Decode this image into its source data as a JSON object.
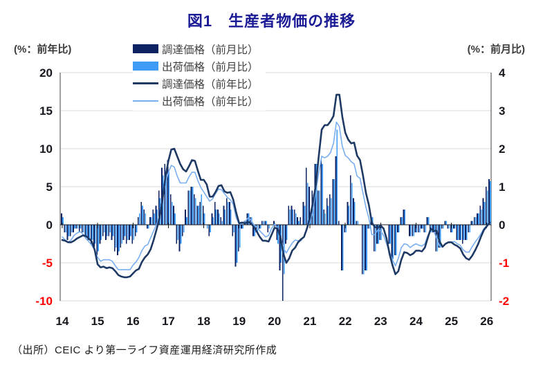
{
  "title": "図1　生産者物価の推移",
  "axis_left_unit": "(%：前年比)",
  "axis_right_unit": "(%：前月比)",
  "source": "（出所）CEIC より第一ライフ資産運用経済研究所作成",
  "legend": [
    {
      "label": "調達価格（前月比）",
      "type": "bar",
      "color": "#0c2263"
    },
    {
      "label": "出荷価格（前月比）",
      "type": "bar",
      "color": "#3e9bf7"
    },
    {
      "label": "調達価格（前年比）",
      "type": "line",
      "color": "#1d3964"
    },
    {
      "label": "出荷価格（前年比）",
      "type": "line",
      "color": "#78aef2"
    }
  ],
  "chart_data": {
    "type": "bar+line combo",
    "frequency": "monthly",
    "x_start": "2014-01",
    "x_end": "2026-02",
    "x_tick_labels": [
      "14",
      "15",
      "16",
      "17",
      "18",
      "19",
      "20",
      "21",
      "22",
      "23",
      "24",
      "25",
      "26"
    ],
    "left_axis": {
      "label": "(%：前年比)",
      "min": -10,
      "max": 20,
      "ticks": [
        20,
        15,
        10,
        5,
        0,
        -5,
        -10
      ]
    },
    "right_axis": {
      "label": "(%：前月比)",
      "min": -2,
      "max": 4,
      "ticks": [
        4,
        3,
        2,
        1,
        0,
        -1,
        -2
      ]
    },
    "grid": true,
    "legend_position": "top-left-overlapping",
    "tick_color": "#17171f",
    "negative_tick_color": "#fe0000",
    "gridline_color": "#d9d9d9",
    "frame_color": "#404040",
    "zero_line_color": "#1a1a1a",
    "series": [
      {
        "name": "調達価格（前月比）",
        "type": "bar",
        "axis": "right",
        "color": "#0c2263",
        "values": [
          0.3,
          -0.2,
          -0.4,
          -0.3,
          -0.2,
          -0.1,
          -0.2,
          -0.2,
          -0.3,
          -0.4,
          -0.5,
          -0.6,
          -0.8,
          -0.5,
          -0.3,
          -0.4,
          -0.3,
          -0.4,
          -0.7,
          -0.8,
          -0.6,
          -0.4,
          -0.5,
          -0.4,
          -0.5,
          -0.3,
          0.2,
          0.6,
          0.4,
          -0.1,
          0.2,
          0.4,
          0.5,
          0.9,
          1.5,
          1.6,
          1.7,
          0.8,
          0.5,
          -0.5,
          -0.7,
          -0.3,
          0.4,
          0.9,
          1.0,
          0.8,
          0.5,
          0.6,
          0.5,
          0.0,
          -0.3,
          0.3,
          0.6,
          0.4,
          0.2,
          0.5,
          0.7,
          0.6,
          -0.3,
          -1.1,
          -0.7,
          -0.1,
          0.1,
          0.3,
          0.2,
          -0.3,
          -0.2,
          -0.1,
          0.1,
          0.1,
          -0.2,
          0.0,
          0.1,
          -0.4,
          -1.2,
          -2.0,
          -0.5,
          0.5,
          0.5,
          0.4,
          0.2,
          0.2,
          0.6,
          1.5,
          1.0,
          0.9,
          1.6,
          0.9,
          1.7,
          0.4,
          0.7,
          0.8,
          1.2,
          1.8,
          0.1,
          -1.2,
          -0.2,
          0.6,
          1.3,
          0.7,
          0.1,
          0.0,
          -1.3,
          -1.2,
          -0.1,
          0.2,
          -0.7,
          -0.5,
          -0.4,
          0.0,
          0.0,
          -0.5,
          -0.9,
          -0.8,
          -0.2,
          0.2,
          0.4,
          0.0,
          -0.3,
          -0.3,
          -0.2,
          -0.2,
          -0.1,
          -0.2,
          0.2,
          -0.2,
          -0.2,
          -0.7,
          -0.6,
          -0.1,
          0.1,
          -0.1,
          -0.2,
          -0.1,
          -0.4,
          -0.4,
          -0.5,
          -0.4,
          -0.2,
          0.1,
          0.2,
          0.3,
          0.5,
          0.7,
          1.0,
          1.2
        ]
      },
      {
        "name": "出荷価格（前月比）",
        "type": "bar",
        "axis": "right",
        "color": "#3e9bf7",
        "values": [
          0.2,
          -0.2,
          -0.3,
          -0.2,
          -0.1,
          -0.1,
          -0.1,
          -0.2,
          -0.3,
          -0.4,
          -0.4,
          -0.5,
          -0.7,
          -0.4,
          -0.2,
          -0.3,
          -0.2,
          -0.3,
          -0.6,
          -0.7,
          -0.5,
          -0.3,
          -0.4,
          -0.3,
          -0.4,
          -0.2,
          0.3,
          0.5,
          0.3,
          -0.1,
          0.2,
          0.3,
          0.4,
          0.7,
          1.3,
          1.4,
          1.4,
          0.6,
          0.3,
          -0.4,
          -0.5,
          -0.2,
          0.2,
          0.9,
          1.0,
          0.7,
          0.5,
          0.8,
          0.3,
          -0.1,
          -0.2,
          0.2,
          0.4,
          0.3,
          0.1,
          0.4,
          0.6,
          0.4,
          -0.2,
          -1.0,
          -0.6,
          -0.1,
          0.1,
          0.3,
          0.2,
          -0.3,
          -0.2,
          -0.1,
          0.1,
          0.1,
          -0.1,
          0.0,
          0.0,
          -0.5,
          -1.0,
          -1.3,
          -0.4,
          0.4,
          0.4,
          0.3,
          0.1,
          0.0,
          0.5,
          1.1,
          0.3,
          0.8,
          1.6,
          0.9,
          1.6,
          0.3,
          0.5,
          0.7,
          1.2,
          2.5,
          0.0,
          -1.2,
          -0.2,
          0.5,
          1.1,
          0.6,
          0.1,
          0.0,
          -1.3,
          -1.2,
          -0.1,
          0.2,
          -0.7,
          -0.5,
          -0.4,
          0.0,
          0.0,
          -0.5,
          -0.9,
          -0.8,
          -0.2,
          0.2,
          0.4,
          0.0,
          -0.3,
          -0.3,
          -0.2,
          -0.2,
          -0.1,
          -0.2,
          0.2,
          -0.2,
          -0.2,
          -0.7,
          -0.6,
          -0.1,
          0.1,
          -0.1,
          -0.2,
          -0.1,
          -0.4,
          -0.4,
          -0.4,
          -0.4,
          -0.2,
          0.1,
          0.2,
          0.3,
          0.4,
          0.6,
          0.9,
          1.15
        ]
      },
      {
        "name": "調達価格（前年比）",
        "type": "line",
        "axis": "left",
        "color": "#1d3964",
        "values": [
          -2.0,
          -2.1,
          -2.3,
          -2.3,
          -2.1,
          -1.8,
          -1.6,
          -1.4,
          -1.5,
          -1.8,
          -2.2,
          -3.3,
          -5.2,
          -5.6,
          -5.5,
          -5.7,
          -5.6,
          -5.7,
          -6.1,
          -6.6,
          -6.8,
          -6.9,
          -6.9,
          -6.8,
          -6.4,
          -6.0,
          -5.8,
          -4.9,
          -4.3,
          -3.9,
          -3.2,
          -2.0,
          -0.6,
          0.9,
          3.3,
          6.3,
          8.4,
          9.9,
          10.0,
          9.0,
          8.0,
          7.3,
          7.0,
          7.7,
          8.5,
          8.4,
          7.1,
          5.9,
          5.9,
          5.3,
          3.7,
          3.7,
          4.3,
          5.1,
          5.2,
          4.4,
          4.2,
          4.3,
          3.3,
          1.6,
          0.2,
          0.3,
          0.2,
          0.4,
          0.2,
          -0.3,
          -0.9,
          -1.6,
          -2.1,
          -2.1,
          -2.2,
          -1.3,
          -0.4,
          -0.5,
          -1.6,
          -3.8,
          -5.0,
          -4.4,
          -3.4,
          -3.0,
          -2.3,
          -1.9,
          -1.6,
          -0.5,
          0.9,
          2.9,
          5.2,
          9.0,
          12.5,
          13.1,
          13.1,
          13.6,
          14.3,
          17.1,
          17.1,
          14.2,
          12.1,
          11.2,
          10.7,
          10.8,
          9.1,
          8.5,
          6.5,
          4.2,
          2.6,
          0.3,
          -0.3,
          -0.4,
          -0.1,
          -0.5,
          -1.8,
          -3.8,
          -5.3,
          -6.5,
          -6.1,
          -4.6,
          -3.6,
          -3.7,
          -4.0,
          -3.8,
          -3.4,
          -3.4,
          -3.5,
          -3.0,
          -1.7,
          -0.5,
          -0.8,
          -0.8,
          -2.2,
          -2.9,
          -2.5,
          -2.3,
          -2.3,
          -2.6,
          -2.8,
          -3.1,
          -3.9,
          -4.4,
          -4.6,
          -4.1,
          -3.4,
          -2.6,
          -1.6,
          -0.7,
          -0.2,
          0.3
        ]
      },
      {
        "name": "出荷価格（前年比）",
        "type": "line",
        "axis": "left",
        "color": "#78aef2",
        "values": [
          -1.6,
          -2.0,
          -2.3,
          -2.0,
          -1.4,
          -1.1,
          -0.9,
          -1.2,
          -1.8,
          -2.2,
          -2.7,
          -3.3,
          -4.3,
          -4.8,
          -4.6,
          -4.6,
          -4.6,
          -4.8,
          -5.4,
          -5.9,
          -5.9,
          -5.9,
          -5.9,
          -5.9,
          -5.3,
          -4.9,
          -4.3,
          -3.4,
          -2.8,
          -2.6,
          -1.7,
          -0.8,
          0.1,
          1.2,
          3.3,
          5.5,
          6.9,
          7.8,
          7.6,
          6.4,
          5.5,
          5.5,
          5.5,
          6.3,
          6.9,
          6.9,
          5.8,
          4.9,
          4.3,
          3.7,
          3.1,
          3.4,
          4.1,
          4.7,
          4.6,
          4.1,
          3.6,
          3.3,
          2.7,
          0.9,
          0.1,
          0.1,
          0.4,
          0.9,
          0.6,
          0.0,
          -0.3,
          -0.8,
          -1.2,
          -1.6,
          -1.4,
          -0.5,
          0.1,
          -0.4,
          -1.5,
          -3.1,
          -3.7,
          -3.0,
          -2.4,
          -2.0,
          -2.1,
          -2.1,
          -1.5,
          -0.4,
          0.3,
          1.7,
          4.4,
          6.8,
          9.0,
          8.8,
          9.0,
          9.5,
          10.7,
          13.5,
          12.9,
          10.3,
          9.1,
          8.8,
          8.3,
          8.0,
          6.4,
          6.1,
          4.2,
          2.3,
          0.9,
          -1.3,
          -1.3,
          -0.7,
          -0.8,
          -1.4,
          -2.5,
          -3.6,
          -4.6,
          -5.4,
          -4.4,
          -3.0,
          -2.5,
          -2.6,
          -3.0,
          -2.7,
          -2.5,
          -2.7,
          -2.8,
          -2.5,
          -1.4,
          -0.8,
          -0.8,
          -1.8,
          -2.8,
          -2.9,
          -2.5,
          -2.3,
          -2.3,
          -2.2,
          -2.5,
          -2.7,
          -3.3,
          -3.6,
          -3.6,
          -2.9,
          -2.3,
          -1.8,
          -1.2,
          -0.5,
          -0.1,
          0.2
        ]
      }
    ]
  }
}
